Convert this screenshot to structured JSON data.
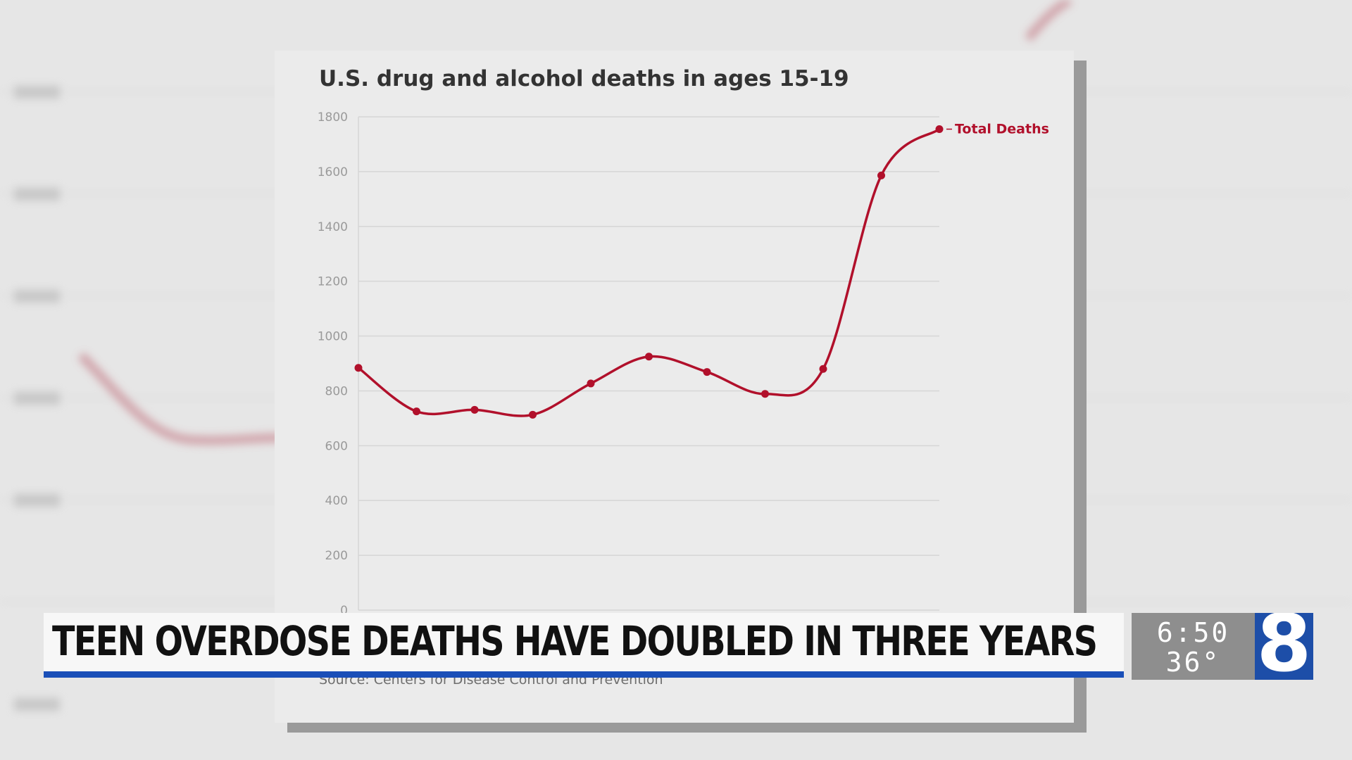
{
  "chart_data": {
    "type": "line",
    "title": "U.S. drug and alcohol deaths in ages 15-19",
    "source": "Source: Centers for Disease Control and Prevention",
    "ylim": [
      0,
      1800
    ],
    "yticks": [
      0,
      200,
      400,
      600,
      800,
      1000,
      1200,
      1400,
      1600,
      1800
    ],
    "grid": true,
    "series": [
      {
        "name": "Total Deaths",
        "color": "#b1102b",
        "values": [
          884,
          725,
          731,
          713,
          827,
          925,
          869,
          789,
          880,
          1586,
          1755
        ]
      }
    ]
  },
  "lower_third": {
    "headline": "TEEN OVERDOSE DEATHS HAVE DOUBLED IN THREE YEARS",
    "time": "6:50",
    "temperature": "36°",
    "logo": "8",
    "accent_color": "#1a4fb8"
  }
}
